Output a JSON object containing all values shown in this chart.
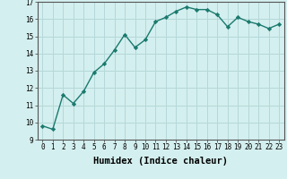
{
  "x": [
    0,
    1,
    2,
    3,
    4,
    5,
    6,
    7,
    8,
    9,
    10,
    11,
    12,
    13,
    14,
    15,
    16,
    17,
    18,
    19,
    20,
    21,
    22,
    23
  ],
  "y": [
    9.8,
    9.6,
    11.6,
    11.1,
    11.8,
    12.9,
    13.4,
    14.2,
    15.1,
    14.35,
    14.8,
    15.85,
    16.1,
    16.45,
    16.7,
    16.55,
    16.55,
    16.25,
    15.55,
    16.1,
    15.85,
    15.7,
    15.45,
    15.7
  ],
  "line_color": "#1a7a6e",
  "marker": "D",
  "marker_size": 2.2,
  "background_color": "#d4efef",
  "grid_color": "#b5d8d8",
  "xlabel": "Humidex (Indice chaleur)",
  "ylim": [
    9,
    17
  ],
  "xlim": [
    -0.5,
    23.5
  ],
  "yticks": [
    9,
    10,
    11,
    12,
    13,
    14,
    15,
    16,
    17
  ],
  "xticks": [
    0,
    1,
    2,
    3,
    4,
    5,
    6,
    7,
    8,
    9,
    10,
    11,
    12,
    13,
    14,
    15,
    16,
    17,
    18,
    19,
    20,
    21,
    22,
    23
  ],
  "tick_fontsize": 5.5,
  "xlabel_fontsize": 7.5,
  "line_width": 1.0
}
